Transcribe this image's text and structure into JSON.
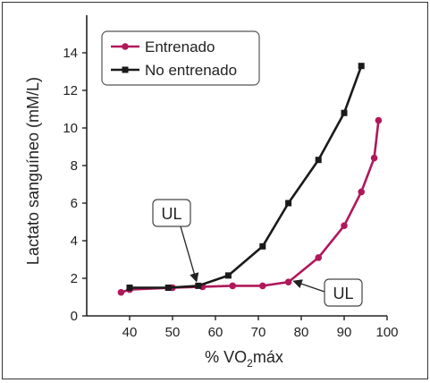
{
  "chart_data": {
    "type": "line",
    "xlabel_prefix": "% VO",
    "xlabel_sub": "2",
    "xlabel_suffix": "máx",
    "ylabel": "Lactato sanguíneo (mM/L)",
    "xlim": [
      30,
      100
    ],
    "ylim": [
      0,
      16
    ],
    "x_ticks": [
      40,
      50,
      60,
      70,
      80,
      90,
      100
    ],
    "y_ticks": [
      0,
      2,
      4,
      6,
      8,
      10,
      12,
      14
    ],
    "grid": false,
    "legend_position": "top-left",
    "series": [
      {
        "name": "Entrenado",
        "color": "#b0185a",
        "marker": "circle",
        "x": [
          38,
          40,
          50,
          57,
          64,
          71,
          77,
          84,
          90,
          94,
          97,
          98
        ],
        "y": [
          1.25,
          1.4,
          1.5,
          1.55,
          1.6,
          1.6,
          1.8,
          3.1,
          4.8,
          6.6,
          8.4,
          10.4
        ]
      },
      {
        "name": "No entrenado",
        "color": "#1a1a1a",
        "marker": "square",
        "x": [
          40,
          49,
          56,
          63,
          71,
          77,
          84,
          90,
          94
        ],
        "y": [
          1.5,
          1.5,
          1.6,
          2.15,
          3.7,
          6.0,
          8.3,
          10.8,
          13.3
        ]
      }
    ],
    "annotations": [
      {
        "label": "UL",
        "x": 56,
        "y": 1.6,
        "series": "No entrenado"
      },
      {
        "label": "UL",
        "x": 77,
        "y": 1.8,
        "series": "Entrenado"
      }
    ]
  }
}
